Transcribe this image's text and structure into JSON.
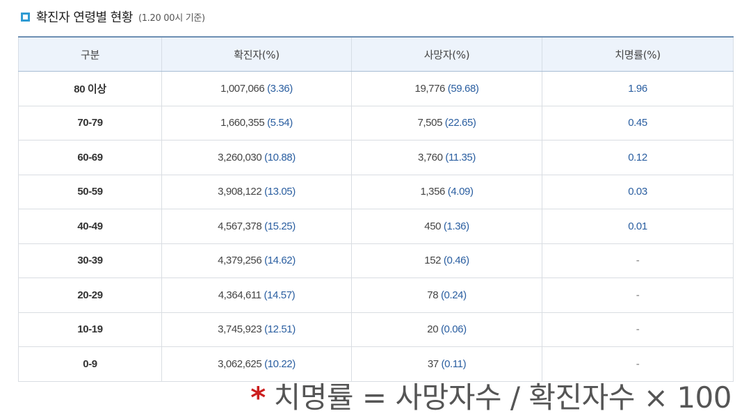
{
  "header": {
    "title": "확진자 연령별 현황",
    "subtitle": "(1.20 00시 기준)"
  },
  "table": {
    "columns": [
      "구분",
      "확진자(%)",
      "사망자(%)",
      "치명률(%)"
    ],
    "rows": [
      {
        "age": "80 이상",
        "cases": "1,007,066",
        "cases_pct": "(3.36)",
        "deaths": "19,776",
        "deaths_pct": "(59.68)",
        "fatality": "1.96"
      },
      {
        "age": "70-79",
        "cases": "1,660,355",
        "cases_pct": "(5.54)",
        "deaths": "7,505",
        "deaths_pct": "(22.65)",
        "fatality": "0.45"
      },
      {
        "age": "60-69",
        "cases": "3,260,030",
        "cases_pct": "(10.88)",
        "deaths": "3,760",
        "deaths_pct": "(11.35)",
        "fatality": "0.12"
      },
      {
        "age": "50-59",
        "cases": "3,908,122",
        "cases_pct": "(13.05)",
        "deaths": "1,356",
        "deaths_pct": "(4.09)",
        "fatality": "0.03"
      },
      {
        "age": "40-49",
        "cases": "4,567,378",
        "cases_pct": "(15.25)",
        "deaths": "450",
        "deaths_pct": "(1.36)",
        "fatality": "0.01"
      },
      {
        "age": "30-39",
        "cases": "4,379,256",
        "cases_pct": "(14.62)",
        "deaths": "152",
        "deaths_pct": "(0.46)",
        "fatality": "-"
      },
      {
        "age": "20-29",
        "cases": "4,364,611",
        "cases_pct": "(14.57)",
        "deaths": "78",
        "deaths_pct": "(0.24)",
        "fatality": "-"
      },
      {
        "age": "10-19",
        "cases": "3,745,923",
        "cases_pct": "(12.51)",
        "deaths": "20",
        "deaths_pct": "(0.06)",
        "fatality": "-"
      },
      {
        "age": "0-9",
        "cases": "3,062,625",
        "cases_pct": "(10.22)",
        "deaths": "37",
        "deaths_pct": "(0.11)",
        "fatality": "-"
      }
    ]
  },
  "footnote": {
    "star": "*",
    "formula": "치명률 = 사망자수 / 확진자수 × 100"
  },
  "colors": {
    "accent": "#2f9bd3",
    "header_bg": "#edf3fb",
    "value_blue": "#2a5ea0",
    "star_red": "#cc1f1f"
  },
  "icons": {
    "title_marker": "square-marker-icon"
  }
}
